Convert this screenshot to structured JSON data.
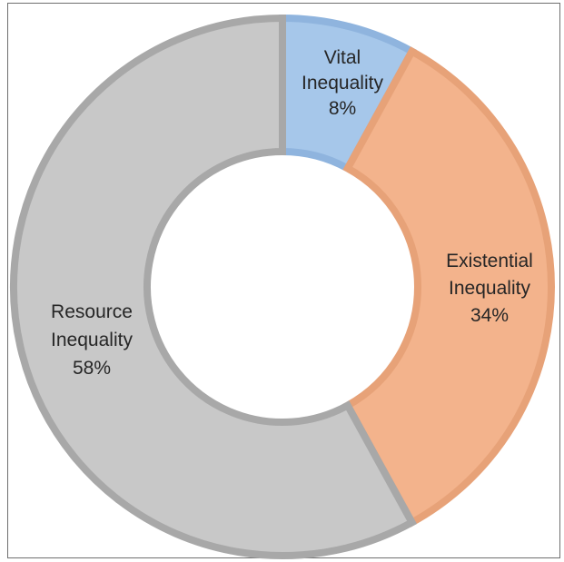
{
  "chart_data": {
    "type": "pie",
    "variant": "doughnut",
    "title": "",
    "slices": [
      {
        "name": "Vital Inequality",
        "label_line1": "Vital",
        "label_line2": "Inequality",
        "percent_label": "8%",
        "value": 8,
        "color": "#a6c7ea",
        "edge": "#8fb4de"
      },
      {
        "name": "Existential Inequality",
        "label_line1": "Existential",
        "label_line2": "Inequality",
        "percent_label": "34%",
        "value": 34,
        "color": "#f3b38c",
        "edge": "#e7a278"
      },
      {
        "name": "Resource Inequality",
        "label_line1": "Resource",
        "label_line2": "Inequality",
        "percent_label": "58%",
        "value": 58,
        "color": "#c8c8c8",
        "edge": "#a8a8a8"
      }
    ],
    "legend": "none",
    "data_labels": "on slices"
  }
}
